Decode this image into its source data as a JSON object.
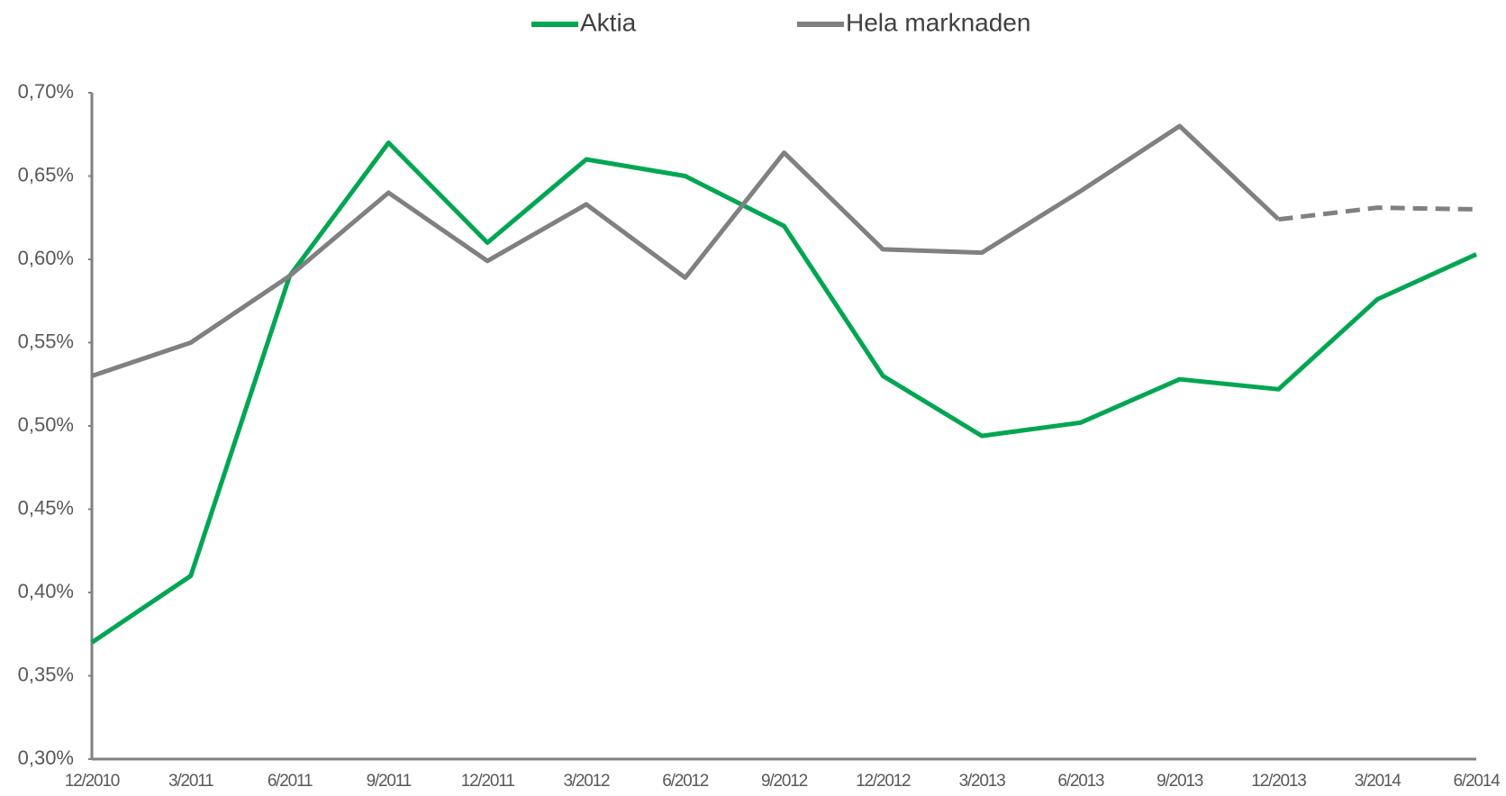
{
  "chart_data": {
    "type": "line",
    "categories": [
      "12/2010",
      "3/2011",
      "6/2011",
      "9/2011",
      "12/2011",
      "3/2012",
      "6/2012",
      "9/2012",
      "12/2012",
      "3/2013",
      "6/2013",
      "9/2013",
      "12/2013",
      "3/2014",
      "6/2014"
    ],
    "series": [
      {
        "name": "Aktia",
        "color": "#00a651",
        "values": [
          0.37,
          0.41,
          0.59,
          0.67,
          0.61,
          0.66,
          0.65,
          0.62,
          0.53,
          0.494,
          0.502,
          0.528,
          0.522,
          0.576,
          0.603
        ]
      },
      {
        "name": "Hela marknaden",
        "color": "#808080",
        "dashed_from": 12,
        "values": [
          0.53,
          0.55,
          0.59,
          0.64,
          0.599,
          0.633,
          0.589,
          0.664,
          0.606,
          0.604,
          0.641,
          0.68,
          0.624,
          0.631,
          0.63
        ]
      }
    ],
    "ylim": [
      0.3,
      0.7
    ],
    "yticks": [
      {
        "value": 0.3,
        "label": "0,30%"
      },
      {
        "value": 0.35,
        "label": "0,35%"
      },
      {
        "value": 0.4,
        "label": "0,40%"
      },
      {
        "value": 0.45,
        "label": "0,45%"
      },
      {
        "value": 0.5,
        "label": "0,50%"
      },
      {
        "value": 0.55,
        "label": "0,55%"
      },
      {
        "value": 0.6,
        "label": "0,60%"
      },
      {
        "value": 0.65,
        "label": "0,65%"
      },
      {
        "value": 0.7,
        "label": "0,70%"
      }
    ],
    "grid": false,
    "legend": "top"
  }
}
